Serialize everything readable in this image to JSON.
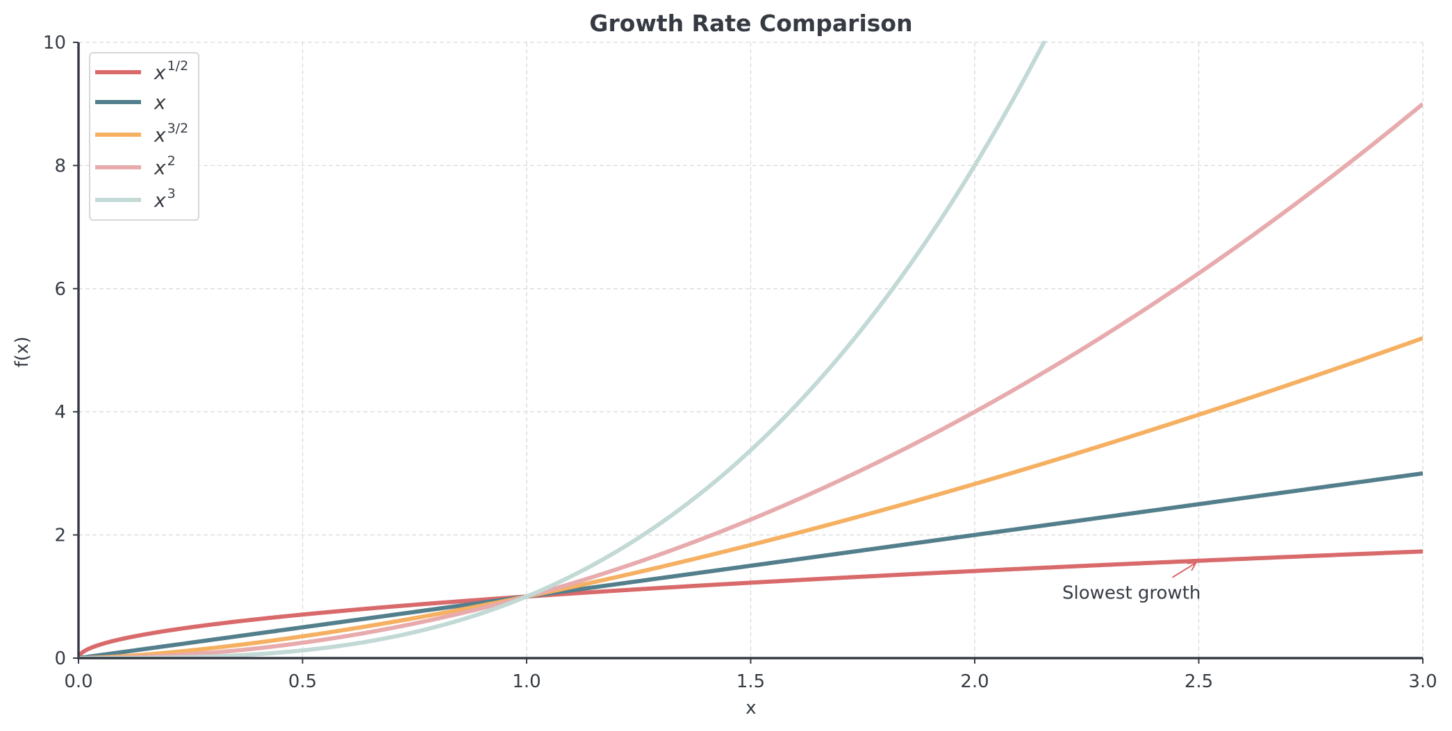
{
  "chart_data": {
    "type": "line",
    "title": "Growth Rate Comparison",
    "xlabel": "x",
    "ylabel": "f(x)",
    "xlim": [
      0,
      3
    ],
    "ylim": [
      0,
      10
    ],
    "xticks": [
      0.0,
      0.5,
      1.0,
      1.5,
      2.0,
      2.5,
      3.0
    ],
    "xtick_labels": [
      "0.0",
      "0.5",
      "1.0",
      "1.5",
      "2.0",
      "2.5",
      "3.0"
    ],
    "yticks": [
      0,
      2,
      4,
      6,
      8,
      10
    ],
    "ytick_labels": [
      "0",
      "2",
      "4",
      "6",
      "8",
      "10"
    ],
    "grid": true,
    "legend_position": "top-left",
    "series": [
      {
        "name": "x^{1/2}",
        "base": "x",
        "exponent_label": "1/2",
        "exponent": 0.5,
        "color": "#d96a6b",
        "x": [
          0,
          0.5,
          1.0,
          1.5,
          2.0,
          2.5,
          3.0
        ],
        "y": [
          0,
          0.707,
          1.0,
          1.225,
          1.414,
          1.581,
          1.732
        ]
      },
      {
        "name": "x",
        "base": "x",
        "exponent_label": "",
        "exponent": 1,
        "color": "#537f8c",
        "x": [
          0,
          0.5,
          1.0,
          1.5,
          2.0,
          2.5,
          3.0
        ],
        "y": [
          0,
          0.5,
          1.0,
          1.5,
          2.0,
          2.5,
          3.0
        ]
      },
      {
        "name": "x^{3/2}",
        "base": "x",
        "exponent_label": "3/2",
        "exponent": 1.5,
        "color": "#f5b062",
        "x": [
          0,
          0.5,
          1.0,
          1.5,
          2.0,
          2.5,
          3.0
        ],
        "y": [
          0,
          0.354,
          1.0,
          1.837,
          2.828,
          3.953,
          5.196
        ]
      },
      {
        "name": "x^2",
        "base": "x",
        "exponent_label": "2",
        "exponent": 2,
        "color": "#e8abad",
        "x": [
          0,
          0.5,
          1.0,
          1.5,
          2.0,
          2.5,
          3.0
        ],
        "y": [
          0,
          0.25,
          1.0,
          2.25,
          4.0,
          6.25,
          9.0
        ]
      },
      {
        "name": "x^3",
        "base": "x",
        "exponent_label": "3",
        "exponent": 3,
        "color": "#c2d9d6",
        "x": [
          0,
          0.5,
          1.0,
          1.5,
          2.0,
          2.154
        ],
        "y": [
          0,
          0.125,
          1.0,
          3.375,
          8.0,
          10.0
        ]
      }
    ],
    "annotations": [
      {
        "text": "Slowest growth",
        "arrow_to": [
          2.5,
          1.581
        ],
        "text_at": [
          2.2,
          1.0
        ],
        "color": "#d96a6b"
      }
    ]
  }
}
